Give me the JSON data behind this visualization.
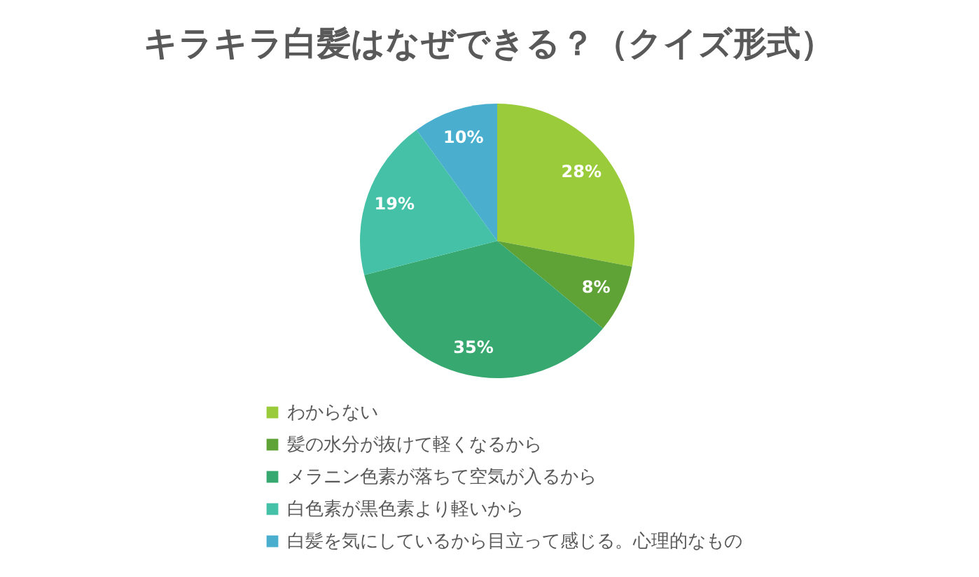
{
  "chart_data": {
    "type": "pie",
    "title": "キラキラ白髪はなぜできる？（クイズ形式）",
    "categories": [
      "わからない",
      "髪の水分が抜けて軽くなるから",
      "メラニン色素が落ちて空気が入るから",
      "白色素が黒色素より軽いから",
      "白髪を気にしているから目立って感じる。心理的なもの"
    ],
    "values": [
      28,
      8,
      35,
      19,
      10
    ],
    "colors": [
      "#9acb3a",
      "#5fa236",
      "#37a870",
      "#44c1a6",
      "#4aafcf"
    ],
    "value_labels": [
      "28%",
      "8%",
      "35%",
      "19%",
      "10%"
    ],
    "legend": "bottom"
  }
}
